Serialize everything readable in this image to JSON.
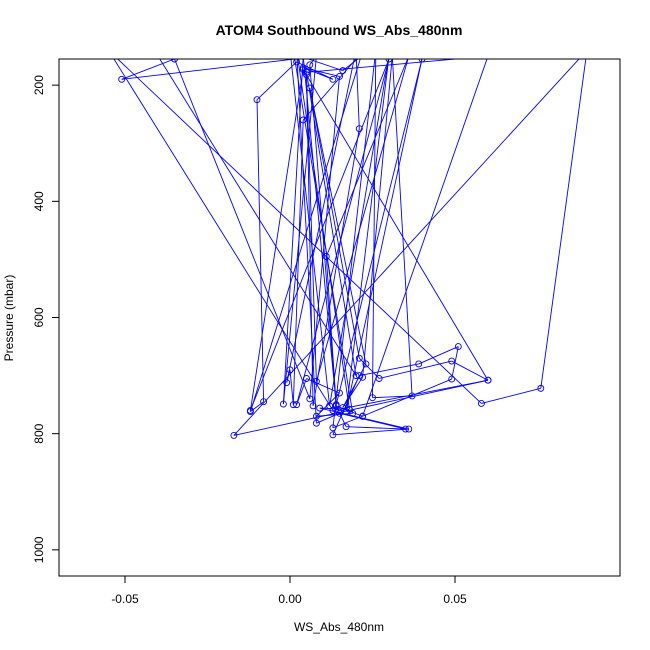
{
  "chart_data": {
    "type": "line",
    "title": "ATOM4 Southbound WS_Abs_480nm",
    "xlabel": "WS_Abs_480nm",
    "ylabel": "Pressure (mbar)",
    "xlim": [
      -0.07,
      0.1
    ],
    "ylim": [
      1045,
      155
    ],
    "y_inverted": true,
    "x_ticks": [
      -0.05,
      0.0,
      0.05
    ],
    "x_tick_labels": [
      "-0.05",
      "0.00",
      "0.05"
    ],
    "y_ticks": [
      200,
      400,
      600,
      800,
      1000
    ],
    "y_tick_labels": [
      "200",
      "400",
      "600",
      "800",
      "1000"
    ],
    "grid": false,
    "series_color": "#0000ff",
    "series": [
      {
        "points": [
          [
            0.003,
            150
          ],
          [
            0.016,
            175
          ],
          [
            0.024,
            140
          ],
          [
            -0.051,
            190
          ],
          [
            -0.035,
            155
          ],
          [
            0.006,
            740
          ],
          [
            0.015,
            185
          ],
          [
            0.004,
            170
          ],
          [
            0.013,
            190
          ],
          [
            0.002,
            160
          ],
          [
            -0.01,
            225
          ],
          [
            -0.008,
            745
          ],
          [
            -0.012,
            762
          ],
          [
            0.022,
            142
          ],
          [
            0.004,
            260
          ],
          [
            0.001,
            750
          ],
          [
            0.0,
            690
          ],
          [
            -0.001,
            712
          ],
          [
            0.02,
            140
          ],
          [
            0.021,
            275
          ],
          [
            0.007,
            752
          ],
          [
            0.005,
            182
          ],
          [
            0.008,
            710
          ],
          [
            0.036,
            150
          ],
          [
            0.011,
            495
          ],
          [
            0.014,
            752
          ],
          [
            0.017,
            788
          ],
          [
            0.035,
            792
          ],
          [
            0.015,
            765
          ],
          [
            0.008,
            782
          ],
          [
            0.002,
            140
          ],
          [
            0.018,
            758
          ],
          [
            0.009,
            756
          ],
          [
            0.036,
            792
          ],
          [
            0.013,
            802
          ],
          [
            0.021,
            700
          ],
          [
            0.039,
            680
          ],
          [
            0.051,
            650
          ],
          [
            0.049,
            706
          ],
          [
            0.022,
            770
          ],
          [
            0.013,
            790
          ],
          [
            0.026,
            140
          ],
          [
            0.025,
            738
          ],
          [
            0.037,
            735
          ],
          [
            0.031,
            150
          ],
          [
            0.022,
            703
          ],
          [
            0.016,
            755
          ],
          [
            0.023,
            680
          ],
          [
            0.006,
            205
          ],
          [
            0.021,
            670
          ],
          [
            0.027,
            705
          ],
          [
            0.049,
            675
          ],
          [
            0.06,
            708
          ],
          [
            0.013,
            760
          ],
          [
            -0.055,
            140
          ],
          [
            0.058,
            748
          ],
          [
            0.076,
            722
          ],
          [
            0.09,
            140
          ],
          [
            -0.017,
            803
          ],
          [
            0.06,
            708
          ],
          [
            0.004,
            173
          ],
          [
            -0.012,
            760
          ],
          [
            0.03,
            155
          ],
          [
            0.002,
            750
          ],
          [
            0.005,
            705
          ],
          [
            0.015,
            730
          ],
          [
            0.008,
            770
          ],
          [
            0.019,
            765
          ],
          [
            0.001,
            140
          ],
          [
            0.0,
            140
          ],
          [
            0.012,
            752
          ],
          [
            0.03,
            150
          ],
          [
            0.017,
            762
          ],
          [
            0.04,
            155
          ],
          [
            0.014,
            750
          ],
          [
            0.004,
            150
          ],
          [
            -0.002,
            749
          ],
          [
            0.008,
            150
          ],
          [
            0.006,
            165
          ],
          [
            0.014,
            752
          ],
          [
            0.022,
            770
          ],
          [
            0.06,
            150
          ],
          [
            0.005,
            178
          ],
          [
            0.02,
            700
          ],
          [
            -0.04,
            150
          ],
          [
            -0.015,
            150
          ]
        ]
      }
    ]
  }
}
